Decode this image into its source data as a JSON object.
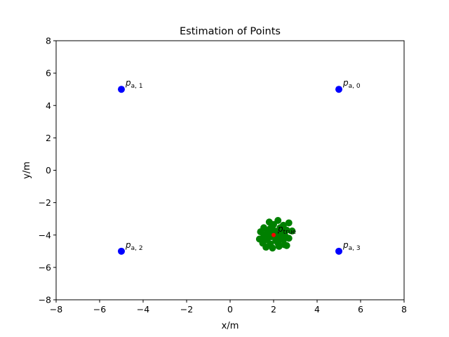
{
  "chart_data": {
    "type": "scatter",
    "title": "Estimation of Points",
    "xlabel": "x/m",
    "ylabel": "y/m",
    "xlim": [
      -8,
      8
    ],
    "ylim": [
      -8,
      8
    ],
    "xticks": [
      -8,
      -6,
      -4,
      -2,
      0,
      2,
      4,
      6,
      8
    ],
    "yticks": [
      -8,
      -6,
      -4,
      -2,
      0,
      2,
      4,
      6,
      8
    ],
    "xtick_labels": [
      "−8",
      "−6",
      "−4",
      "−2",
      "0",
      "2",
      "4",
      "6",
      "8"
    ],
    "ytick_labels": [
      "−8",
      "−6",
      "−4",
      "−2",
      "0",
      "2",
      "4",
      "6",
      "8"
    ],
    "grid": false,
    "series": [
      {
        "color": "#0000ff",
        "points": [
          {
            "x": 5,
            "y": 5,
            "label": "p",
            "sub": "a, 0"
          },
          {
            "x": -5,
            "y": 5,
            "label": "p",
            "sub": "a, 1"
          },
          {
            "x": -5,
            "y": -5,
            "label": "p",
            "sub": "a, 2"
          },
          {
            "x": 5,
            "y": -5,
            "label": "p",
            "sub": "a, 3"
          }
        ]
      },
      {
        "color": "#008000",
        "points": [
          {
            "x": 1.8,
            "y": -3.2
          },
          {
            "x": 2.2,
            "y": -3.1
          },
          {
            "x": 2.7,
            "y": -3.25
          },
          {
            "x": 2.0,
            "y": -3.35
          },
          {
            "x": 2.45,
            "y": -3.4
          },
          {
            "x": 1.55,
            "y": -3.55
          },
          {
            "x": 1.85,
            "y": -3.6
          },
          {
            "x": 2.3,
            "y": -3.55
          },
          {
            "x": 2.6,
            "y": -3.7
          },
          {
            "x": 2.85,
            "y": -3.75
          },
          {
            "x": 1.4,
            "y": -3.8
          },
          {
            "x": 1.7,
            "y": -3.85
          },
          {
            "x": 2.05,
            "y": -3.75
          },
          {
            "x": 2.4,
            "y": -3.85
          },
          {
            "x": 1.55,
            "y": -4.05
          },
          {
            "x": 1.9,
            "y": -4.1
          },
          {
            "x": 2.25,
            "y": -4.05
          },
          {
            "x": 2.55,
            "y": -4.1
          },
          {
            "x": 1.35,
            "y": -4.25
          },
          {
            "x": 1.7,
            "y": -4.3
          },
          {
            "x": 2.1,
            "y": -4.35
          },
          {
            "x": 2.45,
            "y": -4.3
          },
          {
            "x": 2.7,
            "y": -4.2
          },
          {
            "x": 1.5,
            "y": -4.5
          },
          {
            "x": 1.85,
            "y": -4.55
          },
          {
            "x": 2.2,
            "y": -4.5
          },
          {
            "x": 2.5,
            "y": -4.6
          },
          {
            "x": 1.65,
            "y": -4.75
          },
          {
            "x": 1.95,
            "y": -4.8
          },
          {
            "x": 2.25,
            "y": -4.7
          },
          {
            "x": 2.6,
            "y": -4.65
          },
          {
            "x": 2.15,
            "y": -4.0
          },
          {
            "x": 1.8,
            "y": -3.95
          },
          {
            "x": 2.35,
            "y": -4.2
          },
          {
            "x": 1.6,
            "y": -4.15
          }
        ]
      },
      {
        "color": "#ff0000",
        "points": [
          {
            "x": 2,
            "y": -4,
            "label": "p",
            "sub": "true"
          }
        ]
      }
    ]
  }
}
